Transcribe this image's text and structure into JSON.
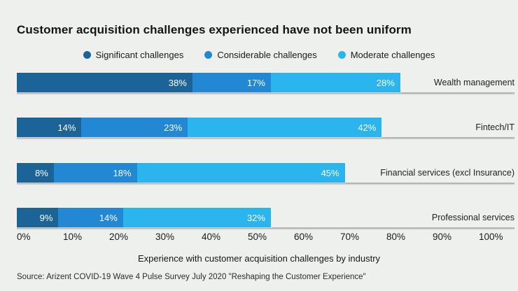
{
  "title": "Customer acquisition challenges experienced have not been uniform",
  "legend": [
    {
      "label": "Significant challenges",
      "color": "#1c6498"
    },
    {
      "label": "Considerable challenges",
      "color": "#2288d4"
    },
    {
      "label": "Moderate challenges",
      "color": "#2ab5ee"
    }
  ],
  "chart_data": {
    "type": "bar",
    "orientation": "horizontal",
    "stacked": true,
    "categories": [
      "Wealth management",
      "Fintech/IT",
      "Financial services (excl Insurance)",
      "Professional services"
    ],
    "series": [
      {
        "name": "Significant challenges",
        "color": "#1c6498",
        "values": [
          38,
          14,
          8,
          9
        ]
      },
      {
        "name": "Considerable challenges",
        "color": "#2288d4",
        "values": [
          17,
          23,
          18,
          14
        ]
      },
      {
        "name": "Moderate challenges",
        "color": "#2ab5ee",
        "values": [
          28,
          42,
          45,
          32
        ]
      }
    ],
    "value_suffix": "%",
    "xlabel": "Experience with customer acquisition challenges by industry",
    "x_ticks": [
      "0%",
      "10%",
      "20%",
      "30%",
      "40%",
      "50%",
      "60%",
      "70%",
      "80%",
      "90%",
      "100%"
    ],
    "xlim": [
      0,
      100
    ],
    "grid": false,
    "legend_position": "top-center",
    "background": "#eef0ee"
  },
  "source": "Source: Arizent COVID-19 Wave 4 Pulse Survey July 2020 \"Reshaping the Customer Experience\""
}
